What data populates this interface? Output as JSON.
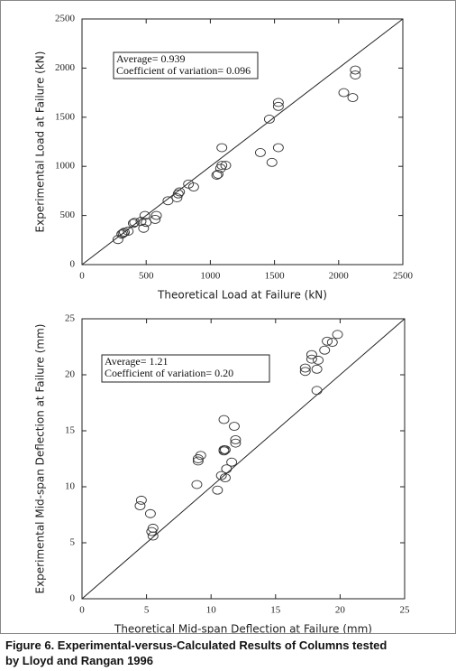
{
  "chart_data": [
    {
      "type": "scatter",
      "xlabel": "Theoretical Load at Failure (kN)",
      "ylabel": "Experimental Load at Failure (kN)",
      "annotations": [
        "Average= 0.939",
        "Coefficient of variation= 0.096"
      ],
      "xlim": [
        0,
        2500
      ],
      "ylim": [
        0,
        2500
      ],
      "xticks": [
        0,
        500,
        1000,
        1500,
        2000,
        2500
      ],
      "yticks": [
        0,
        500,
        1000,
        1500,
        2000,
        2500
      ],
      "x": [
        280,
        310,
        320,
        330,
        360,
        400,
        410,
        460,
        480,
        490,
        500,
        570,
        580,
        670,
        740,
        750,
        760,
        830,
        870,
        1050,
        1060,
        1080,
        1090,
        1090,
        1120,
        1390,
        1460,
        1480,
        1530,
        1530,
        1530,
        2040,
        2110,
        2130,
        2130
      ],
      "values": [
        255,
        310,
        320,
        330,
        340,
        420,
        430,
        440,
        370,
        500,
        430,
        460,
        500,
        650,
        680,
        720,
        740,
        820,
        790,
        910,
        920,
        980,
        1010,
        1190,
        1010,
        1140,
        1480,
        1040,
        1190,
        1610,
        1650,
        1750,
        1700,
        1930,
        1980
      ]
    },
    {
      "type": "scatter",
      "xlabel": "Theoretical Mid-span Deflection at Failure (mm)",
      "ylabel": "Experimental Mid-span Deflection at Failure (mm)",
      "annotations": [
        "Average= 1.21",
        "Coefficient of variation= 0.20"
      ],
      "xlim": [
        0,
        25
      ],
      "ylim": [
        0,
        25
      ],
      "xticks": [
        0,
        5,
        10,
        15,
        20,
        25
      ],
      "yticks": [
        0,
        5,
        10,
        15,
        20,
        25
      ],
      "x": [
        4.6,
        4.5,
        5.3,
        5.5,
        5.4,
        5.5,
        8.9,
        9.0,
        9.0,
        9.2,
        10.5,
        10.8,
        11.0,
        11.0,
        11.0,
        11.1,
        11.1,
        11.2,
        11.6,
        11.8,
        11.9,
        11.9,
        17.3,
        17.3,
        17.8,
        17.8,
        18.2,
        18.3,
        18.2,
        18.8,
        19.0,
        19.4,
        19.8
      ],
      "values": [
        8.8,
        8.3,
        7.6,
        6.3,
        6.0,
        5.6,
        10.2,
        12.3,
        12.5,
        12.8,
        9.7,
        11.0,
        16.0,
        13.3,
        13.2,
        13.3,
        10.8,
        11.6,
        12.2,
        15.4,
        14.2,
        13.9,
        20.6,
        20.3,
        21.8,
        21.4,
        20.5,
        21.3,
        18.6,
        22.2,
        23.0,
        22.9,
        23.6
      ]
    }
  ],
  "caption": [
    "Figure 6. Experimental-versus-Calculated Results of Columns tested",
    "by Lloyd and Rangan 1996"
  ]
}
